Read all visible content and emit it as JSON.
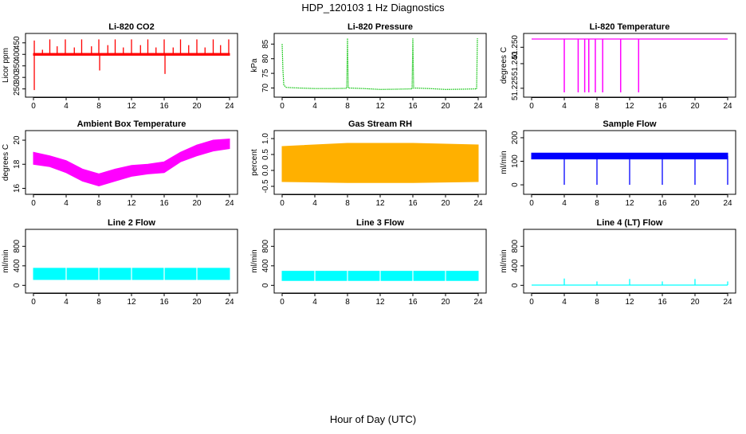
{
  "figure": {
    "title": "HDP_120103  1 Hz Diagnostics",
    "xlabel": "Hour of Day (UTC)"
  },
  "chart_data": [
    {
      "type": "line",
      "title": "Li-820 CO2",
      "ylabel": "Licor ppm",
      "color": "#ff0000",
      "style": "band",
      "xlim": [
        0,
        24
      ],
      "x_ticks": [
        0,
        4,
        8,
        12,
        16,
        20,
        24
      ],
      "ylim": [
        235,
        470
      ],
      "y_ticks": [
        250,
        300,
        350,
        400,
        450
      ],
      "baseline": [
        [
          0,
          400
        ],
        [
          24,
          400
        ]
      ],
      "band": [
        [
          0,
          396,
          404
        ],
        [
          24,
          396,
          404
        ]
      ],
      "spikes": [
        [
          0.1,
          460
        ],
        [
          0.1,
          245
        ],
        [
          1.1,
          420
        ],
        [
          2.0,
          465
        ],
        [
          2.9,
          435
        ],
        [
          3.9,
          465
        ],
        [
          5.0,
          430
        ],
        [
          5.9,
          465
        ],
        [
          7.1,
          435
        ],
        [
          8.0,
          465
        ],
        [
          8.1,
          330
        ],
        [
          9.1,
          440
        ],
        [
          10.0,
          465
        ],
        [
          11.0,
          430
        ],
        [
          12.0,
          465
        ],
        [
          13.1,
          440
        ],
        [
          14.0,
          465
        ],
        [
          15.0,
          430
        ],
        [
          16.0,
          465
        ],
        [
          16.1,
          315
        ],
        [
          17.1,
          430
        ],
        [
          18.0,
          465
        ],
        [
          19.0,
          440
        ],
        [
          20.0,
          465
        ],
        [
          21.0,
          430
        ],
        [
          22.0,
          465
        ],
        [
          22.9,
          440
        ],
        [
          23.9,
          465
        ]
      ]
    },
    {
      "type": "line",
      "title": "Li-820 Pressure",
      "ylabel": "kPa",
      "color": "#00c000",
      "style": "dotted-line",
      "xlim": [
        0,
        24
      ],
      "x_ticks": [
        0,
        4,
        8,
        12,
        16,
        20,
        24
      ],
      "ylim": [
        68.5,
        87
      ],
      "y_ticks": [
        70,
        75,
        80,
        85
      ],
      "points": [
        [
          0.0,
          85.0
        ],
        [
          0.1,
          76.0
        ],
        [
          0.2,
          71.0
        ],
        [
          0.5,
          70.2
        ],
        [
          2,
          70.0
        ],
        [
          4,
          69.8
        ],
        [
          6,
          69.8
        ],
        [
          7.9,
          69.9
        ],
        [
          8.0,
          87.0
        ],
        [
          8.1,
          70.0
        ],
        [
          10,
          69.8
        ],
        [
          12,
          69.5
        ],
        [
          14,
          69.6
        ],
        [
          15.9,
          69.7
        ],
        [
          16.0,
          87.0
        ],
        [
          16.1,
          70.0
        ],
        [
          18,
          69.8
        ],
        [
          20,
          69.5
        ],
        [
          22,
          69.6
        ],
        [
          23.8,
          69.7
        ],
        [
          23.9,
          87.0
        ]
      ]
    },
    {
      "type": "line",
      "title": "Li-820 Temperature",
      "ylabel": "degrees C",
      "color": "#ff00ff",
      "style": "drops",
      "xlim": [
        0,
        24
      ],
      "x_ticks": [
        0,
        4,
        8,
        12,
        16,
        20,
        24
      ],
      "ylim": [
        51.2225,
        51.2555
      ],
      "y_ticks": [
        51.225,
        51.24,
        51.25
      ],
      "y_tick_labels": [
        "51.225",
        "51.240",
        "51.250"
      ],
      "baseline": [
        [
          0,
          51.255
        ],
        [
          24,
          51.255
        ]
      ],
      "drops": [
        [
          4.0,
          51.2225
        ],
        [
          5.7,
          51.2225
        ],
        [
          6.5,
          51.2225
        ],
        [
          7.0,
          51.2225
        ],
        [
          7.8,
          51.2225
        ],
        [
          8.7,
          51.2225
        ],
        [
          10.9,
          51.2225
        ],
        [
          13.1,
          51.2225
        ]
      ]
    },
    {
      "type": "area",
      "title": "Ambient Box Temperature",
      "ylabel": "degrees C",
      "color": "#ff00ff",
      "style": "band",
      "xlim": [
        0,
        24
      ],
      "x_ticks": [
        0,
        4,
        8,
        12,
        16,
        20,
        24
      ],
      "ylim": [
        15.9,
        20.4
      ],
      "y_ticks": [
        16,
        18,
        20
      ],
      "band": [
        [
          0,
          18.0,
          19.0
        ],
        [
          2,
          17.8,
          18.7
        ],
        [
          4,
          17.3,
          18.3
        ],
        [
          6,
          16.6,
          17.6
        ],
        [
          8,
          16.2,
          17.2
        ],
        [
          10,
          16.6,
          17.6
        ],
        [
          12,
          17.0,
          17.9
        ],
        [
          14,
          17.2,
          18.0
        ],
        [
          16,
          17.3,
          18.2
        ],
        [
          18,
          18.2,
          19.0
        ],
        [
          20,
          18.7,
          19.6
        ],
        [
          22,
          19.1,
          20.0
        ],
        [
          24,
          19.3,
          20.1
        ]
      ]
    },
    {
      "type": "area",
      "title": "Gas Stream RH",
      "ylabel": "percent",
      "color": "#ffb000",
      "style": "band",
      "xlim": [
        0,
        24
      ],
      "x_ticks": [
        0,
        4,
        8,
        12,
        16,
        20,
        24
      ],
      "ylim": [
        -0.6,
        1.1
      ],
      "y_ticks": [
        -0.5,
        0.0,
        0.5,
        1.0
      ],
      "y_tick_labels": [
        "-0.5",
        "0.0",
        "0.5",
        "1.0"
      ],
      "band": [
        [
          0,
          -0.35,
          0.75
        ],
        [
          8,
          -0.38,
          0.85
        ],
        [
          16,
          -0.38,
          0.85
        ],
        [
          24,
          -0.35,
          0.8
        ]
      ]
    },
    {
      "type": "line",
      "title": "Sample Flow",
      "ylabel": "ml/min",
      "color": "#0000ff",
      "style": "band",
      "xlim": [
        0,
        24
      ],
      "x_ticks": [
        0,
        4,
        8,
        12,
        16,
        20,
        24
      ],
      "ylim": [
        -20,
        210
      ],
      "y_ticks": [
        0,
        100,
        200
      ],
      "band": [
        [
          0,
          110,
          135
        ],
        [
          24,
          110,
          135
        ]
      ],
      "spikes": [
        [
          4.0,
          0
        ],
        [
          8.0,
          0
        ],
        [
          12.0,
          0
        ],
        [
          16.0,
          0
        ],
        [
          20.0,
          0
        ],
        [
          24.0,
          0
        ]
      ]
    },
    {
      "type": "area",
      "title": "Line 2 Flow",
      "ylabel": "ml/min",
      "color": "#00ffff",
      "style": "band",
      "xlim": [
        0,
        24
      ],
      "x_ticks": [
        0,
        4,
        8,
        12,
        16,
        20,
        24
      ],
      "ylim": [
        -60,
        1050
      ],
      "y_ticks": [
        0,
        400,
        800
      ],
      "band": [
        [
          0,
          120,
          350
        ],
        [
          24,
          120,
          350
        ]
      ],
      "gaps": [
        4.0,
        8.0,
        12.0,
        16.0,
        20.0
      ]
    },
    {
      "type": "area",
      "title": "Line 3 Flow",
      "ylabel": "ml/min",
      "color": "#00ffff",
      "style": "band",
      "xlim": [
        0,
        24
      ],
      "x_ticks": [
        0,
        4,
        8,
        12,
        16,
        20,
        24
      ],
      "ylim": [
        -60,
        1050
      ],
      "y_ticks": [
        0,
        400,
        800
      ],
      "band": [
        [
          0,
          100,
          290
        ],
        [
          24,
          100,
          290
        ]
      ],
      "gaps": [
        4.0,
        8.0,
        12.0,
        16.0,
        20.0
      ]
    },
    {
      "type": "line",
      "title": "Line 4 (LT) Flow",
      "ylabel": "ml/min",
      "color": "#00ffff",
      "style": "line",
      "xlim": [
        0,
        24
      ],
      "x_ticks": [
        0,
        4,
        8,
        12,
        16,
        20,
        24
      ],
      "ylim": [
        -60,
        1050
      ],
      "y_ticks": [
        0,
        400,
        800
      ],
      "baseline": [
        [
          0,
          5
        ],
        [
          24,
          5
        ]
      ],
      "spikes": [
        [
          4.0,
          140
        ],
        [
          8.0,
          80
        ],
        [
          12.0,
          130
        ],
        [
          16.0,
          80
        ],
        [
          20.0,
          130
        ],
        [
          24.0,
          80
        ]
      ]
    }
  ]
}
